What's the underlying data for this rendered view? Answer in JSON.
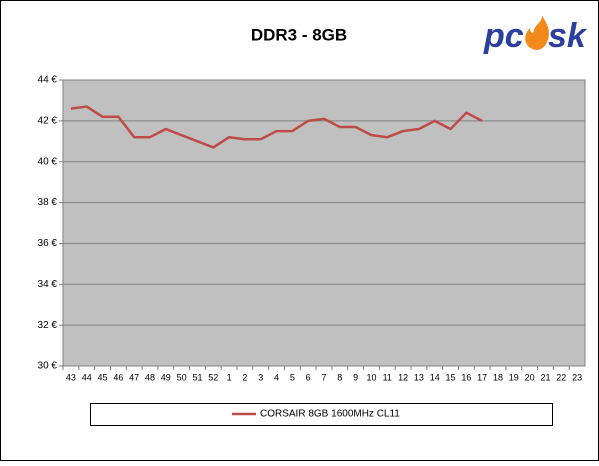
{
  "chart_data": {
    "type": "line",
    "title": "DDR3 - 8GB",
    "logo": [
      "pc",
      "sk"
    ],
    "categories": [
      "43",
      "44",
      "45",
      "46",
      "47",
      "48",
      "49",
      "50",
      "51",
      "52",
      "1",
      "2",
      "3",
      "4",
      "5",
      "6",
      "7",
      "8",
      "9",
      "10",
      "11",
      "12",
      "13",
      "14",
      "15",
      "16",
      "17",
      "18",
      "19",
      "20",
      "21",
      "22",
      "23"
    ],
    "series": [
      {
        "name": "CORSAIR 8GB 1600MHz CL11",
        "color": "#be4b48",
        "values": [
          42.6,
          42.7,
          42.2,
          42.2,
          41.2,
          41.2,
          41.6,
          41.3,
          41.0,
          40.7,
          41.2,
          41.1,
          41.1,
          41.5,
          41.5,
          42.0,
          42.1,
          41.7,
          41.7,
          41.3,
          41.2,
          41.5,
          41.6,
          42.0,
          41.6,
          42.4,
          42.0,
          null,
          null,
          null,
          null,
          null,
          null
        ]
      }
    ],
    "ylim": [
      30,
      44
    ],
    "yticks": [
      {
        "value": 30,
        "label": "30 €"
      },
      {
        "value": 32,
        "label": "32 €"
      },
      {
        "value": 34,
        "label": "34 €"
      },
      {
        "value": 36,
        "label": "36 €"
      },
      {
        "value": 38,
        "label": "38 €"
      },
      {
        "value": 40,
        "label": "40 €"
      },
      {
        "value": 42,
        "label": "42 €"
      },
      {
        "value": 44,
        "label": "44 €"
      }
    ],
    "grid": true,
    "plot_background": "#c0c0c0"
  }
}
